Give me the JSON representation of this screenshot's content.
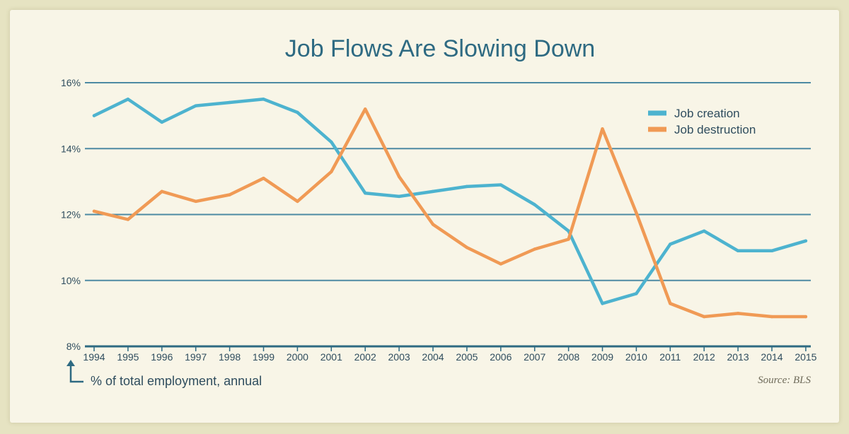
{
  "chart_data": {
    "type": "line",
    "title": "Job Flows Are Slowing Down",
    "categories": [
      "1994",
      "1995",
      "1996",
      "1997",
      "1998",
      "1999",
      "2000",
      "2001",
      "2002",
      "2003",
      "2004",
      "2005",
      "2006",
      "2007",
      "2008",
      "2009",
      "2010",
      "2011",
      "2012",
      "2013",
      "2014",
      "2015"
    ],
    "series": [
      {
        "name": "Job creation",
        "color": "#4db3cf",
        "values": [
          15.0,
          15.5,
          14.8,
          15.3,
          15.4,
          15.5,
          15.1,
          14.2,
          12.65,
          12.55,
          12.7,
          12.85,
          12.9,
          12.3,
          11.5,
          9.3,
          9.6,
          11.1,
          11.5,
          10.9,
          10.9,
          11.2
        ]
      },
      {
        "name": "Job destruction",
        "color": "#f09a55",
        "values": [
          12.1,
          11.85,
          12.7,
          12.4,
          12.6,
          13.1,
          12.4,
          13.3,
          15.2,
          13.15,
          11.7,
          11.0,
          10.5,
          10.95,
          11.25,
          14.6,
          12.05,
          9.3,
          8.9,
          9.0,
          8.9,
          8.9
        ]
      }
    ],
    "y_ticks": [
      "8%",
      "10%",
      "12%",
      "14%",
      "16%"
    ],
    "y_tick_values": [
      8,
      10,
      12,
      14,
      16
    ],
    "ylim": [
      8,
      16
    ],
    "ylabel": "% of total employment, annual",
    "xlabel": "",
    "source": "Source: BLS",
    "legend_position": "top-right",
    "grid": true,
    "grid_color": "#4d8aa3",
    "axis_color": "#2e6a82"
  }
}
